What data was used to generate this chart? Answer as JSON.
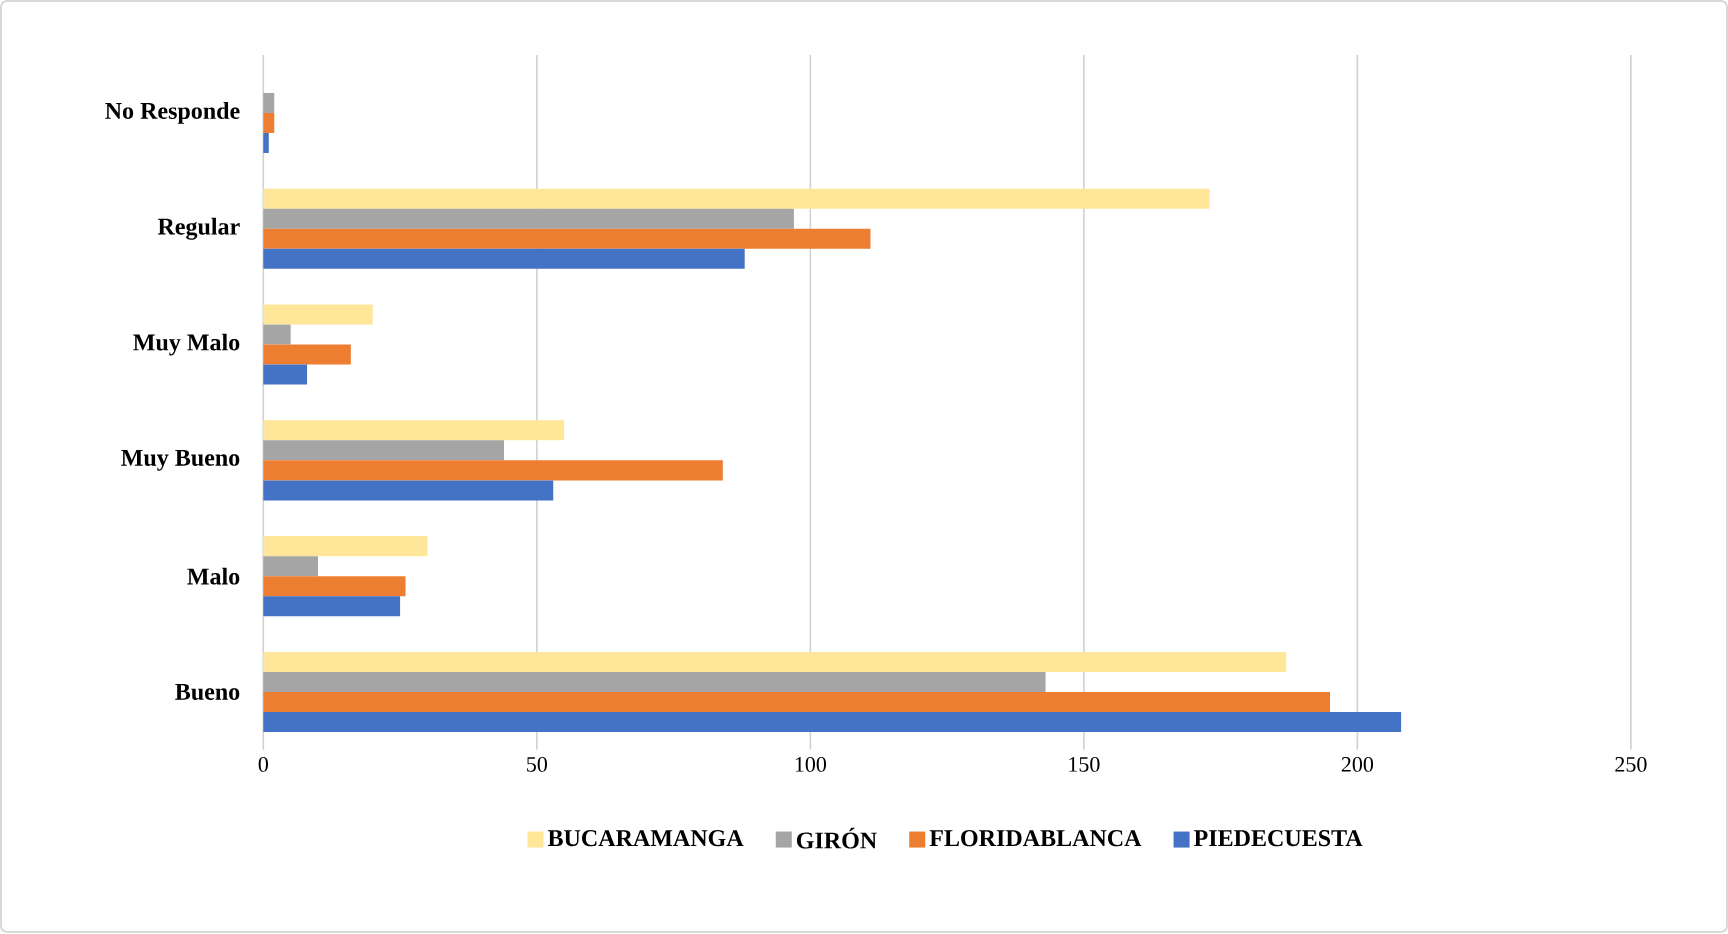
{
  "chart_data": {
    "type": "bar",
    "orientation": "horizontal",
    "categories": [
      "No Responde",
      "Regular",
      "Muy Malo",
      "Muy Bueno",
      "Malo",
      "Bueno"
    ],
    "series": [
      {
        "name": "BUCARAMANGA",
        "color": "#ffe699",
        "values": [
          0,
          173,
          20,
          55,
          30,
          187
        ]
      },
      {
        "name": "GIRÓN",
        "color": "#a5a5a5",
        "values": [
          2,
          97,
          5,
          44,
          10,
          143
        ]
      },
      {
        "name": "FLORIDABLANCA",
        "color": "#ed7d31",
        "values": [
          2,
          111,
          16,
          84,
          26,
          195
        ]
      },
      {
        "name": "PIEDECUESTA",
        "color": "#4472c4",
        "values": [
          1,
          88,
          8,
          53,
          25,
          208
        ]
      }
    ],
    "xlim": [
      0,
      250
    ],
    "xticks": [
      0,
      50,
      100,
      150,
      200,
      250
    ],
    "grid": "x",
    "legend": "bottom"
  }
}
